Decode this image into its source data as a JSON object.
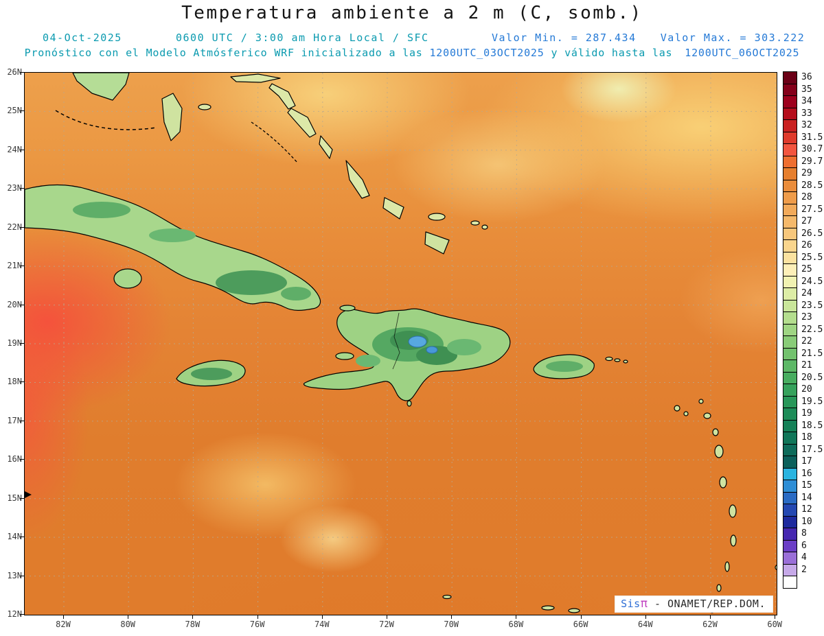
{
  "header": {
    "title": "Temperatura ambiente a 2 m (C, somb.)",
    "date": "04-Oct-2025",
    "time": "0600 UTC / 3:00 am Hora Local / SFC",
    "valor_min": "Valor Min. = 287.434",
    "valor_max": "Valor Max. = 303.222",
    "forecast_prefix": "Pronóstico con el Modelo Atmósferico WRF inicializado a las",
    "init_time": "1200UTC_03OCT2025",
    "forecast_mid": "y válido hasta las",
    "valid_time": "1200UTC_06OCT2025"
  },
  "axes": {
    "lat": [
      "26N",
      "25N",
      "24N",
      "23N",
      "22N",
      "21N",
      "20N",
      "19N",
      "18N",
      "17N",
      "16N",
      "15N",
      "14N",
      "13N",
      "12N"
    ],
    "lon": [
      "82W",
      "80W",
      "78W",
      "76W",
      "74W",
      "72W",
      "70W",
      "68W",
      "66W",
      "64W",
      "62W",
      "60W"
    ]
  },
  "colorbar": {
    "cells": [
      {
        "label": "36",
        "color": "#6b0016"
      },
      {
        "label": "35",
        "color": "#84001a"
      },
      {
        "label": "34",
        "color": "#9d001d"
      },
      {
        "label": "33",
        "color": "#b50d1c"
      },
      {
        "label": "32",
        "color": "#c92121"
      },
      {
        "label": "31.5",
        "color": "#df3a2b"
      },
      {
        "label": "30.7",
        "color": "#f2553f"
      },
      {
        "label": "29.7",
        "color": "#ee6e30"
      },
      {
        "label": "29",
        "color": "#e67f2e"
      },
      {
        "label": "28.5",
        "color": "#ea8d3c"
      },
      {
        "label": "28",
        "color": "#ef9c4a"
      },
      {
        "label": "27.5",
        "color": "#f2aa5a"
      },
      {
        "label": "27",
        "color": "#f5b96b"
      },
      {
        "label": "26.5",
        "color": "#f7c77c"
      },
      {
        "label": "26",
        "color": "#f9d58d"
      },
      {
        "label": "25.5",
        "color": "#fbe2a0"
      },
      {
        "label": "25",
        "color": "#fdefb8"
      },
      {
        "label": "24.5",
        "color": "#f1f2b2"
      },
      {
        "label": "24",
        "color": "#ddeda6"
      },
      {
        "label": "23.5",
        "color": "#c9e69a"
      },
      {
        "label": "23",
        "color": "#b4de8e"
      },
      {
        "label": "22.5",
        "color": "#9fd583"
      },
      {
        "label": "22",
        "color": "#89cc78"
      },
      {
        "label": "21.5",
        "color": "#73c26e"
      },
      {
        "label": "21",
        "color": "#5db867"
      },
      {
        "label": "20.5",
        "color": "#48ad60"
      },
      {
        "label": "20",
        "color": "#36a25c"
      },
      {
        "label": "19.5",
        "color": "#289759"
      },
      {
        "label": "19",
        "color": "#1d8c58"
      },
      {
        "label": "18.5",
        "color": "#158158"
      },
      {
        "label": "18",
        "color": "#107659"
      },
      {
        "label": "17.5",
        "color": "#0d6b5a"
      },
      {
        "label": "17",
        "color": "#0b605b"
      },
      {
        "label": "16",
        "color": "#2ab4e0"
      },
      {
        "label": "15",
        "color": "#2e8ed6"
      },
      {
        "label": "14",
        "color": "#2a6bc4"
      },
      {
        "label": "12",
        "color": "#2448b2"
      },
      {
        "label": "10",
        "color": "#1e2a9e"
      },
      {
        "label": "8",
        "color": "#4527b0"
      },
      {
        "label": "6",
        "color": "#6b3ec6"
      },
      {
        "label": "4",
        "color": "#9a6fd8"
      },
      {
        "label": "2",
        "color": "#c6a9e8"
      },
      {
        "label": "",
        "color": "#ffffff"
      }
    ]
  },
  "credit": {
    "brand": "Sis",
    "pi": "π",
    "suffix": "- ONAMET/REP.DOM."
  },
  "chart_data": {
    "type": "heatmap",
    "title": "Temperatura ambiente a 2 m (C, somb.)",
    "valid": "04-Oct-2025 0600 UTC / 3:00 am Hora Local / SFC",
    "value_min": 287.434,
    "value_max": 303.222,
    "lat_ticks": [
      "26N",
      "25N",
      "24N",
      "23N",
      "22N",
      "21N",
      "20N",
      "19N",
      "18N",
      "17N",
      "16N",
      "15N",
      "14N",
      "13N",
      "12N"
    ],
    "lon_ticks": [
      "82W",
      "80W",
      "78W",
      "76W",
      "74W",
      "72W",
      "70W",
      "68W",
      "66W",
      "64W",
      "62W",
      "60W"
    ],
    "scale_levels_C": [
      36,
      35,
      34,
      33,
      32,
      31.5,
      30.7,
      29.7,
      29,
      28.5,
      28,
      27.5,
      27,
      26.5,
      26,
      25.5,
      25,
      24.5,
      24,
      23.5,
      23,
      22.5,
      22,
      21.5,
      21,
      20.5,
      20,
      19.5,
      19,
      18.5,
      18,
      17.5,
      17,
      16,
      15,
      14,
      12,
      10,
      8,
      6,
      4,
      2
    ]
  }
}
